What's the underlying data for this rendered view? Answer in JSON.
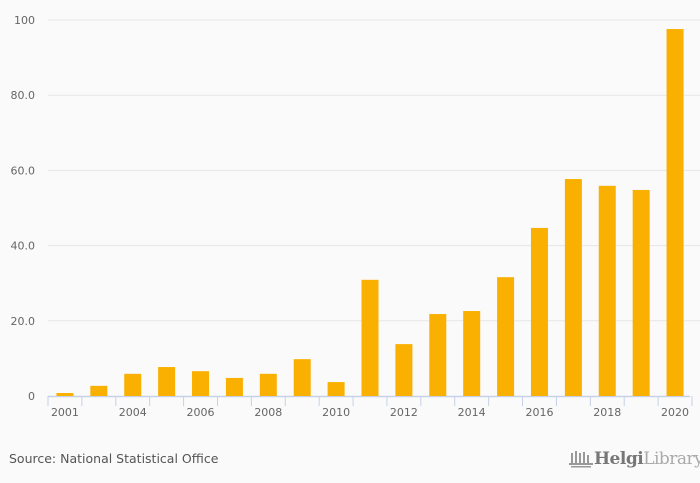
{
  "chart_data": {
    "type": "bar",
    "title": "",
    "xlabel": "",
    "ylabel": "",
    "categories": [
      "2001",
      "2003",
      "2004",
      "2005",
      "2006",
      "2007",
      "2008",
      "2009",
      "2010",
      "2011",
      "2012",
      "2013",
      "2014",
      "2015",
      "2016",
      "2017",
      "2018",
      "2019",
      "2020"
    ],
    "values": [
      0.8,
      2.7,
      5.9,
      7.7,
      6.6,
      4.8,
      5.9,
      9.8,
      3.7,
      30.9,
      13.8,
      21.8,
      22.6,
      31.6,
      44.7,
      57.7,
      55.9,
      54.8,
      97.6
    ],
    "x_tick_labels": [
      "2001",
      "",
      "2004",
      "",
      "2006",
      "",
      "2008",
      "",
      "2010",
      "",
      "2012",
      "",
      "2014",
      "",
      "2016",
      "",
      "2018",
      "",
      "2020"
    ],
    "yticks": [
      0,
      20,
      40,
      60,
      80,
      100
    ],
    "ytick_labels": [
      "0",
      "20.0",
      "40.0",
      "60.0",
      "80.0",
      "100"
    ],
    "ylim": [
      0,
      100
    ],
    "grid": true,
    "bar_color": "#f9b000"
  },
  "footer": {
    "source": "Source: National Statistical Office",
    "logo_bold": "Helgi",
    "logo_light": "Library."
  }
}
